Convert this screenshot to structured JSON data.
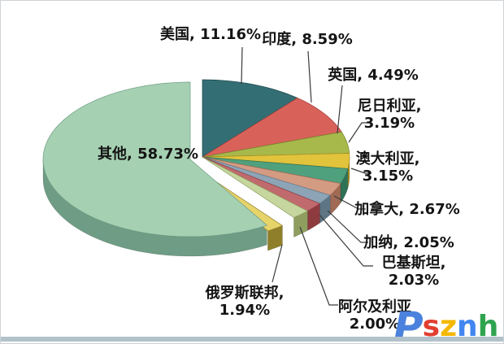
{
  "chart_data": {
    "type": "pie",
    "style": "3d-exploded-pie",
    "title": "",
    "unit": "%",
    "legend_position": "none",
    "labels_outside_with_leader_lines": true,
    "categories": [
      "美国",
      "印度",
      "英国",
      "尼日利亚",
      "澳大利亚",
      "加拿大",
      "加纳",
      "巴基斯坦",
      "阿尔及利亚",
      "俄罗斯联邦",
      "其他"
    ],
    "values": [
      11.16,
      8.59,
      4.49,
      3.19,
      3.15,
      2.67,
      2.05,
      2.03,
      2.0,
      1.94,
      58.73
    ],
    "slices": [
      {
        "label": "美国",
        "value": 11.16,
        "label_lines": [
          "美国, 11.16%"
        ],
        "color_top": "#336E74",
        "color_side": "#1E464B"
      },
      {
        "label": "印度",
        "value": 8.59,
        "label_lines": [
          "印度, 8.59%"
        ],
        "color_top": "#D8625A",
        "color_side": "#9E3A35"
      },
      {
        "label": "英国",
        "value": 4.49,
        "label_lines": [
          "英国, 4.49%"
        ],
        "color_top": "#A7B94B",
        "color_side": "#74832B"
      },
      {
        "label": "尼日利亚",
        "value": 3.19,
        "label_lines": [
          "尼日利亚,",
          "3.19%"
        ],
        "color_top": "#E2C33C",
        "color_side": "#A88E1F"
      },
      {
        "label": "澳大利亚",
        "value": 3.15,
        "label_lines": [
          "澳大利亚,",
          "3.15%"
        ],
        "color_top": "#4FA17E",
        "color_side": "#2F7256"
      },
      {
        "label": "加拿大",
        "value": 2.67,
        "label_lines": [
          "加拿大, 2.67%"
        ],
        "color_top": "#D49B83",
        "color_side": "#A16A55"
      },
      {
        "label": "加纳",
        "value": 2.05,
        "label_lines": [
          "加纳, 2.05%"
        ],
        "color_top": "#8CA4B5",
        "color_side": "#5D7585"
      },
      {
        "label": "巴基斯坦",
        "value": 2.03,
        "label_lines": [
          "巴基斯坦,",
          "2.03%"
        ],
        "color_top": "#C16A6E",
        "color_side": "#8E3B40"
      },
      {
        "label": "阿尔及利亚",
        "value": 2.0,
        "label_lines": [
          "阿尔及利亚",
          "2.00%"
        ],
        "color_top": "#C5D69E",
        "color_side": "#8F9E5F"
      },
      {
        "label": "俄罗斯联邦",
        "value": 1.94,
        "label_lines": [
          "俄罗斯联邦,",
          "1.94%"
        ],
        "color_top": "#E6D36A",
        "color_side": "#8F7F2A"
      },
      {
        "label": "其他",
        "value": 58.73,
        "label_lines": [
          "其他, 58.73%"
        ],
        "color_top": "#A5D0B2",
        "color_side": "#6E9C84"
      }
    ]
  },
  "leader_line_color": "#3a3a3a",
  "watermark": {
    "text": "Psznh",
    "letters": [
      {
        "char": "P",
        "color": "#4A82DD"
      },
      {
        "char": "s",
        "color": "#E03E30"
      },
      {
        "char": "z",
        "color": "#F5B700"
      },
      {
        "char": "n",
        "color": "#4286F0"
      },
      {
        "char": "h",
        "color": "#2FA44F"
      }
    ]
  },
  "frame": {
    "bottom_bar_color": "#B2C2CB",
    "border_color": "#cdd2d6"
  }
}
